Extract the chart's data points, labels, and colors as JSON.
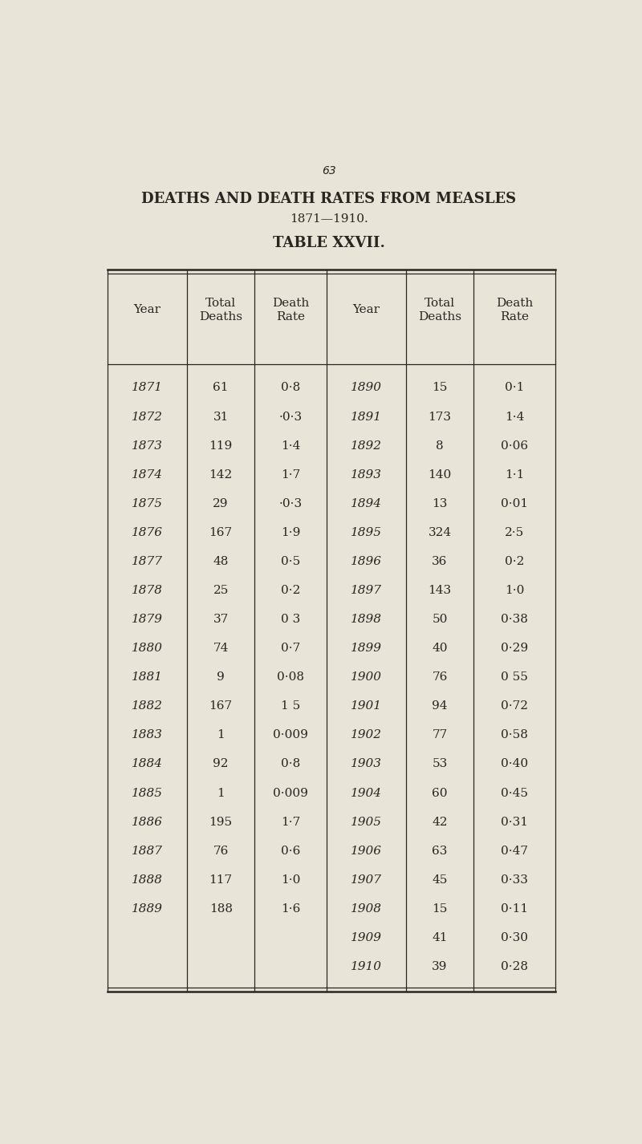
{
  "page_number": "63",
  "title_line1": "DEATHS AND DEATH RATES FROM MEASLES",
  "title_line2": "1871—1910.",
  "table_title": "TABLE XXVII.",
  "headers_left": [
    "Year",
    "Total\nDeaths",
    "Death\nRate"
  ],
  "headers_right": [
    "Year",
    "Total\nDeaths",
    "Death\nRate"
  ],
  "left_data": [
    [
      "1871",
      "61",
      "0·8"
    ],
    [
      "1872",
      "31",
      "·0·3"
    ],
    [
      "1873",
      "119",
      "1·4"
    ],
    [
      "1874",
      "142",
      "1·7"
    ],
    [
      "1875",
      "29",
      "·0·3"
    ],
    [
      "1876",
      "167",
      "1·9"
    ],
    [
      "1877",
      "48",
      "0·5"
    ],
    [
      "1878",
      "25",
      "0·2"
    ],
    [
      "1879",
      "37",
      "0 3"
    ],
    [
      "1880",
      "74",
      "0·7"
    ],
    [
      "1881",
      "9",
      "0·08"
    ],
    [
      "1882",
      "167",
      "1 5"
    ],
    [
      "1883",
      "1",
      "0·009"
    ],
    [
      "1884",
      "92",
      "0·8"
    ],
    [
      "1885",
      "1",
      "0·009"
    ],
    [
      "1886",
      "195",
      "1·7"
    ],
    [
      "1887",
      "76",
      "0·6"
    ],
    [
      "1888",
      "117",
      "1·0"
    ],
    [
      "1889",
      "188",
      "1·6"
    ]
  ],
  "right_data": [
    [
      "1890",
      "15",
      "0·1"
    ],
    [
      "1891",
      "173",
      "1·4"
    ],
    [
      "1892",
      "8",
      "0·06"
    ],
    [
      "1893",
      "140",
      "1·1"
    ],
    [
      "1894",
      "13",
      "0·01"
    ],
    [
      "1895",
      "324",
      "2·5"
    ],
    [
      "1896",
      "36",
      "0·2"
    ],
    [
      "1897",
      "143",
      "1·0"
    ],
    [
      "1898",
      "50",
      "0·38"
    ],
    [
      "1899",
      "40",
      "0·29"
    ],
    [
      "1900",
      "76",
      "0 55"
    ],
    [
      "1901",
      "94",
      "0·72"
    ],
    [
      "1902",
      "77",
      "0·58"
    ],
    [
      "1903",
      "53",
      "0·40"
    ],
    [
      "1904",
      "60",
      "0·45"
    ],
    [
      "1905",
      "42",
      "0·31"
    ],
    [
      "1906",
      "63",
      "0·47"
    ],
    [
      "1907",
      "45",
      "0·33"
    ],
    [
      "1908",
      "15",
      "0·11"
    ],
    [
      "1909",
      "41",
      "0·30"
    ],
    [
      "1910",
      "39",
      "0·28"
    ]
  ],
  "bg_color": "#e8e4d8",
  "text_color": "#2a2520",
  "line_color": "#2a2520",
  "title_fontsize": 13,
  "subtitle_fontsize": 11,
  "header_fontsize": 11,
  "data_fontsize": 11
}
